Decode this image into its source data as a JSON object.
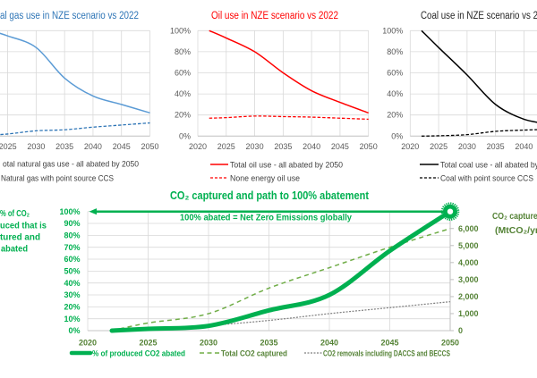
{
  "chart_data": [
    {
      "type": "line",
      "title": "al gas use in NZE scenario vs 2022",
      "title_color": "#2E75B6",
      "xlim": [
        2020,
        2050
      ],
      "ylim": [
        0,
        100
      ],
      "y_unit": "%",
      "grid": true,
      "legend_position": "bottom",
      "xticks": [
        "2025",
        "2030",
        "2035",
        "2040",
        "2045",
        "2050"
      ],
      "yticks": [],
      "x": [
        2022,
        2025,
        2030,
        2035,
        2040,
        2045,
        2050
      ],
      "series": [
        {
          "name": "otal natural gas use - all abated by 2050",
          "color": "#5B9BD5",
          "style": "solid",
          "values": [
            100,
            95,
            84,
            55,
            38,
            30,
            22
          ]
        },
        {
          "name": "Natural gas with point source CCS",
          "color": "#2E75B6",
          "style": "dashed",
          "values": [
            1,
            2,
            5,
            6,
            8.5,
            10.5,
            12.5
          ]
        }
      ]
    },
    {
      "type": "line",
      "title": "Oil use in NZE scenario vs 2022",
      "title_color": "#FF0000",
      "xlim": [
        2020,
        2050
      ],
      "ylim": [
        0,
        100
      ],
      "y_unit": "%",
      "grid": true,
      "legend_position": "bottom",
      "xticks": [
        "2020",
        "2025",
        "2030",
        "2035",
        "2040",
        "2045",
        "2050"
      ],
      "yticks": [
        "0%",
        "20%",
        "40%",
        "60%",
        "80%",
        "100%"
      ],
      "x": [
        2022,
        2025,
        2030,
        2035,
        2040,
        2045,
        2050
      ],
      "series": [
        {
          "name": "Total oil use - all abated by 2050",
          "color": "#FF0000",
          "style": "solid",
          "values": [
            100,
            93,
            80,
            60,
            43,
            32,
            22
          ]
        },
        {
          "name": "None energy oil use",
          "color": "#FF0000",
          "style": "dashed",
          "values": [
            17,
            17.5,
            19,
            18.5,
            18,
            17,
            16
          ]
        }
      ]
    },
    {
      "type": "line",
      "title": "Coal use in NZE scenario vs 2",
      "title_color": "#262626",
      "xlim": [
        2020,
        2050
      ],
      "ylim": [
        0,
        100
      ],
      "y_unit": "%",
      "grid": true,
      "legend_position": "bottom",
      "xticks": [
        "2020",
        "2025",
        "2030",
        "2035",
        "2040"
      ],
      "yticks": [
        "0%",
        "20%",
        "40%",
        "60%",
        "80%",
        "100%"
      ],
      "x": [
        2022,
        2025,
        2030,
        2035,
        2040,
        2045
      ],
      "series": [
        {
          "name": "Total coal use - all abated by",
          "color": "#000000",
          "style": "solid",
          "values": [
            100,
            84,
            58,
            30,
            16,
            11
          ]
        },
        {
          "name": "Coal with point source CCS",
          "color": "#000000",
          "style": "dashed",
          "values": [
            0,
            0.3,
            1.4,
            4.5,
            5.7,
            6.5
          ]
        }
      ]
    },
    {
      "type": "line",
      "title": "CO₂ captured and path to 100% abatement",
      "annotation": "100% abated = Net Zero Emissions globally",
      "ylabel_left_lines": [
        "% of CO₂",
        "uced that is",
        "tured and",
        "abated"
      ],
      "ylabel_right_lines": [
        "CO₂ captured",
        "(MtCO₂/yr"
      ],
      "xlim": [
        2020,
        2050
      ],
      "ylim_left": [
        0,
        100
      ],
      "ylim_right": [
        0,
        7000
      ],
      "grid": true,
      "legend_position": "bottom",
      "xticks": [
        "2020",
        "2025",
        "2030",
        "2035",
        "2040",
        "2045",
        "2050"
      ],
      "yticks_left": [
        "0%",
        "10%",
        "20%",
        "30%",
        "40%",
        "50%",
        "60%",
        "70%",
        "80%",
        "90%",
        "100%"
      ],
      "yticks_right": [
        "0",
        "1,000",
        "2,000",
        "3,000",
        "4,000",
        "5,000",
        "6,000"
      ],
      "x": [
        2022,
        2025,
        2030,
        2035,
        2040,
        2045,
        2050
      ],
      "series": [
        {
          "name": "% of produced CO2 abated",
          "axis": "left",
          "color": "#00B050",
          "label_color": "#00B050",
          "style": "thick",
          "values": [
            0,
            1.5,
            4,
            17,
            30,
            67,
            100
          ]
        },
        {
          "name": "Total CO2 captured",
          "axis": "right",
          "color": "#70AD47",
          "label_color": "#548235",
          "style": "dashed",
          "values": [
            0,
            450,
            1000,
            2500,
            3700,
            4900,
            6000
          ]
        },
        {
          "name": "CO2 removals including DACCS and BECCS",
          "axis": "right",
          "color": "#7F7F7F",
          "label_color": "#548235",
          "style": "dotted",
          "values": [
            0,
            100,
            300,
            600,
            1000,
            1350,
            1700
          ]
        }
      ],
      "target_marker": {
        "x": 2050,
        "y": 100,
        "color": "#00B050"
      }
    }
  ]
}
